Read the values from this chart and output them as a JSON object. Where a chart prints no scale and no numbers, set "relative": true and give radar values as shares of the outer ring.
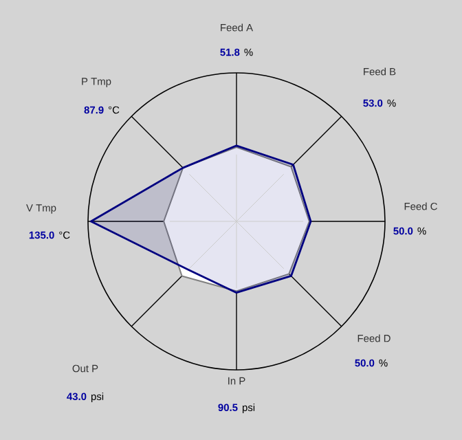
{
  "chart_data": {
    "type": "radar",
    "relative": true,
    "categories": [
      "Feed A",
      "Feed B",
      "Feed C",
      "Feed D",
      "In P",
      "Out P",
      "V Tmp",
      "P Tmp"
    ],
    "series": [
      {
        "color": "#808080",
        "values": [
          0.5,
          0.52,
          0.49,
          0.5,
          0.47,
          0.52,
          0.49,
          0.51
        ]
      },
      {
        "color": "#000080",
        "values": [
          0.51,
          0.54,
          0.5,
          0.52,
          0.48,
          0.46,
          0.98,
          0.51
        ]
      }
    ],
    "annotations": [
      "51.8",
      "%",
      "53.0",
      "%",
      "50.0",
      "%",
      "50.0",
      "%",
      "90.5",
      "psi",
      "43.0",
      "psi",
      "135.0",
      "°C",
      "87.9",
      "°C"
    ]
  }
}
